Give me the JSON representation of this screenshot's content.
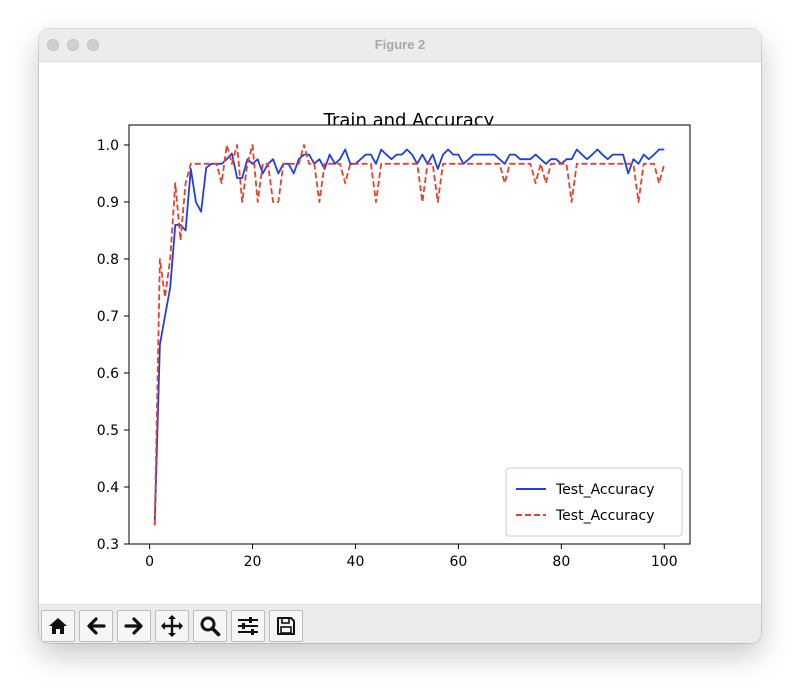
{
  "window": {
    "title": "Figure 2"
  },
  "toolbar": {
    "buttons": [
      {
        "name": "home-button",
        "icon": "home-icon"
      },
      {
        "name": "back-button",
        "icon": "arrow-left-icon"
      },
      {
        "name": "forward-button",
        "icon": "arrow-right-icon"
      },
      {
        "name": "pan-button",
        "icon": "move-icon"
      },
      {
        "name": "zoom-button",
        "icon": "magnifier-icon"
      },
      {
        "name": "configure-subplots-button",
        "icon": "sliders-icon"
      },
      {
        "name": "save-button",
        "icon": "floppy-disk-icon"
      }
    ]
  },
  "chart_data": {
    "type": "line",
    "title": "Train and Accuracy",
    "xlabel": "",
    "ylabel": "",
    "xlim": [
      -4,
      105
    ],
    "ylim": [
      0.3,
      1.035
    ],
    "xticks": [
      0,
      20,
      40,
      60,
      80,
      100
    ],
    "yticks": [
      0.3,
      0.4,
      0.5,
      0.6,
      0.7,
      0.8,
      0.9,
      1.0
    ],
    "legend_position": "lower right",
    "grid": false,
    "series": [
      {
        "name": "Test_Accuracy",
        "color": "#1f3fe0",
        "style": "solid",
        "x": [
          1,
          2,
          3,
          4,
          5,
          6,
          7,
          8,
          9,
          10,
          11,
          12,
          13,
          14,
          15,
          16,
          17,
          18,
          19,
          20,
          21,
          22,
          23,
          24,
          25,
          26,
          27,
          28,
          29,
          30,
          31,
          32,
          33,
          34,
          35,
          36,
          37,
          38,
          39,
          40,
          41,
          42,
          43,
          44,
          45,
          46,
          47,
          48,
          49,
          50,
          51,
          52,
          53,
          54,
          55,
          56,
          57,
          58,
          59,
          60,
          61,
          62,
          63,
          64,
          65,
          66,
          67,
          68,
          69,
          70,
          71,
          72,
          73,
          74,
          75,
          76,
          77,
          78,
          79,
          80,
          81,
          82,
          83,
          84,
          85,
          86,
          87,
          88,
          89,
          90,
          91,
          92,
          93,
          94,
          95,
          96,
          97,
          98,
          99,
          100
        ],
        "y": [
          0.333,
          0.65,
          0.7,
          0.75,
          0.86,
          0.86,
          0.85,
          0.958,
          0.9,
          0.883,
          0.96,
          0.967,
          0.967,
          0.967,
          0.975,
          0.985,
          0.942,
          0.942,
          0.975,
          0.967,
          0.975,
          0.95,
          0.967,
          0.975,
          0.95,
          0.967,
          0.967,
          0.95,
          0.975,
          0.983,
          0.983,
          0.967,
          0.975,
          0.958,
          0.983,
          0.967,
          0.975,
          0.992,
          0.967,
          0.967,
          0.975,
          0.983,
          0.983,
          0.967,
          0.992,
          0.983,
          0.975,
          0.983,
          0.983,
          0.992,
          0.983,
          0.967,
          0.983,
          0.967,
          0.983,
          0.958,
          0.983,
          0.992,
          0.983,
          0.983,
          0.967,
          0.975,
          0.983,
          0.983,
          0.983,
          0.983,
          0.983,
          0.975,
          0.967,
          0.983,
          0.983,
          0.975,
          0.975,
          0.975,
          0.983,
          0.975,
          0.967,
          0.975,
          0.975,
          0.967,
          0.975,
          0.975,
          0.992,
          0.983,
          0.975,
          0.983,
          0.992,
          0.983,
          0.975,
          0.983,
          0.983,
          0.983,
          0.95,
          0.975,
          0.967,
          0.983,
          0.975,
          0.983,
          0.992,
          0.992
        ]
      },
      {
        "name": "Test_Accuracy",
        "color": "#e8412b",
        "style": "dashed",
        "x": [
          1,
          2,
          3,
          4,
          5,
          6,
          7,
          8,
          9,
          10,
          11,
          12,
          13,
          14,
          15,
          16,
          17,
          18,
          19,
          20,
          21,
          22,
          23,
          24,
          25,
          26,
          27,
          28,
          29,
          30,
          31,
          32,
          33,
          34,
          35,
          36,
          37,
          38,
          39,
          40,
          41,
          42,
          43,
          44,
          45,
          46,
          47,
          48,
          49,
          50,
          51,
          52,
          53,
          54,
          55,
          56,
          57,
          58,
          59,
          60,
          61,
          62,
          63,
          64,
          65,
          66,
          67,
          68,
          69,
          70,
          71,
          72,
          73,
          74,
          75,
          76,
          77,
          78,
          79,
          80,
          81,
          82,
          83,
          84,
          85,
          86,
          87,
          88,
          89,
          90,
          91,
          92,
          93,
          94,
          95,
          96,
          97,
          98,
          99,
          100
        ],
        "y": [
          0.333,
          0.8,
          0.733,
          0.8,
          0.933,
          0.833,
          0.933,
          0.967,
          0.967,
          0.967,
          0.967,
          0.967,
          0.967,
          0.933,
          1.0,
          0.967,
          1.0,
          0.9,
          0.967,
          1.0,
          0.9,
          0.967,
          0.967,
          0.9,
          0.9,
          0.967,
          0.967,
          0.967,
          0.967,
          1.0,
          0.967,
          0.967,
          0.9,
          0.967,
          0.967,
          0.967,
          0.967,
          0.933,
          0.967,
          0.967,
          0.967,
          0.967,
          0.967,
          0.9,
          0.967,
          0.967,
          0.967,
          0.967,
          0.967,
          0.967,
          0.967,
          0.967,
          0.9,
          0.967,
          0.967,
          0.9,
          0.967,
          0.967,
          0.967,
          0.967,
          0.967,
          0.967,
          0.967,
          0.967,
          0.967,
          0.967,
          0.967,
          0.967,
          0.933,
          0.967,
          0.967,
          0.967,
          0.967,
          0.967,
          0.933,
          0.967,
          0.933,
          0.967,
          0.967,
          0.967,
          0.967,
          0.9,
          0.967,
          0.967,
          0.967,
          0.967,
          0.967,
          0.967,
          0.967,
          0.967,
          0.967,
          0.967,
          0.967,
          0.967,
          0.9,
          0.967,
          0.967,
          0.967,
          0.933,
          0.967
        ]
      }
    ]
  }
}
